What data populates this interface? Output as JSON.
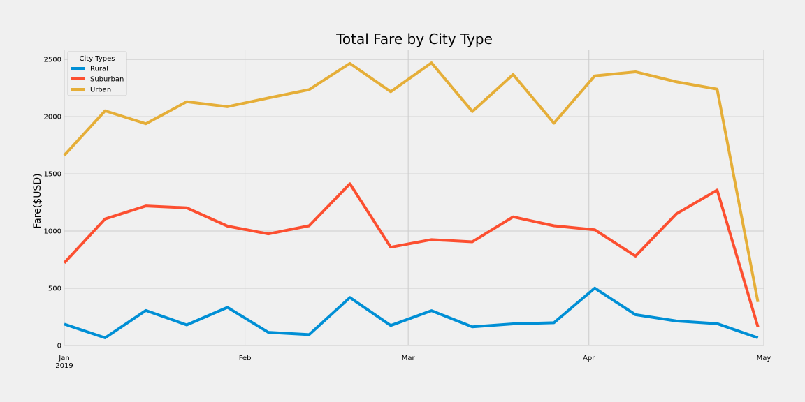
{
  "chart_data": {
    "type": "line",
    "title": "Total Fare by City Type",
    "xlabel": "",
    "ylabel": "Fare($USD)",
    "ylim": [
      0,
      2580
    ],
    "yticks": [
      0,
      500,
      1000,
      1500,
      2000,
      2500
    ],
    "x_ticks": [
      {
        "label": "Jan",
        "sublabel": "2019",
        "date": "2019-01-01"
      },
      {
        "label": "Feb",
        "sublabel": "",
        "date": "2019-02-01"
      },
      {
        "label": "Mar",
        "sublabel": "",
        "date": "2019-03-01"
      },
      {
        "label": "Apr",
        "sublabel": "",
        "date": "2019-04-01"
      },
      {
        "label": "May",
        "sublabel": "",
        "date": "2019-05-01"
      }
    ],
    "x": [
      "2019-01-01",
      "2019-01-08",
      "2019-01-15",
      "2019-01-22",
      "2019-01-29",
      "2019-02-05",
      "2019-02-12",
      "2019-02-19",
      "2019-02-26",
      "2019-03-05",
      "2019-03-12",
      "2019-03-19",
      "2019-03-26",
      "2019-04-02",
      "2019-04-09",
      "2019-04-16",
      "2019-04-23",
      "2019-04-30"
    ],
    "legend": {
      "title": "City Types",
      "position": "upper left"
    },
    "grid": true,
    "series": [
      {
        "name": "Rural",
        "color": "#008fd5",
        "values": [
          187,
          67,
          306,
          180,
          333,
          115,
          95,
          419,
          175,
          304,
          163,
          189,
          199,
          501,
          269,
          214,
          191,
          67
        ]
      },
      {
        "name": "Suburban",
        "color": "#fc4f30",
        "values": [
          722,
          1106,
          1219,
          1203,
          1043,
          975,
          1046,
          1413,
          859,
          925,
          906,
          1124,
          1046,
          1011,
          781,
          1150,
          1358,
          162
        ]
      },
      {
        "name": "Urban",
        "color": "#e5ae38",
        "values": [
          1662,
          2051,
          1938,
          2130,
          2087,
          2163,
          2236,
          2465,
          2218,
          2470,
          2045,
          2368,
          1943,
          2356,
          2391,
          2304,
          2240,
          380
        ]
      }
    ]
  }
}
